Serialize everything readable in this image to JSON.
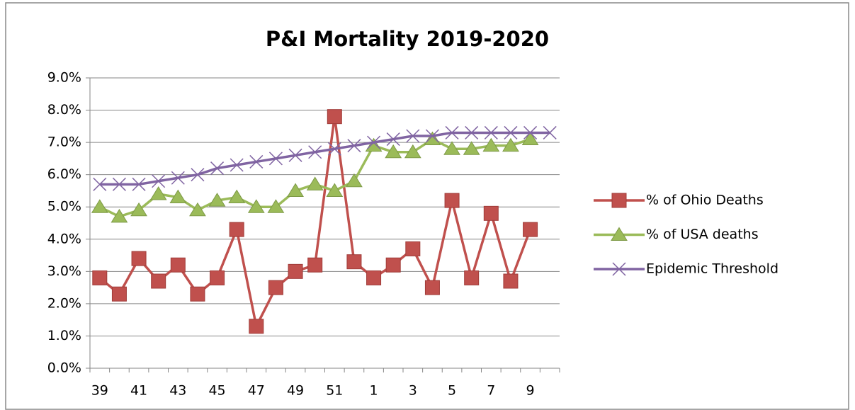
{
  "chart_data": {
    "type": "line",
    "title": "P&I Mortality  2019-2020",
    "categories": [
      "39",
      null,
      "41",
      null,
      "43",
      null,
      "45",
      null,
      "47",
      null,
      "49",
      null,
      "51",
      null,
      "1",
      null,
      "3",
      null,
      "5",
      null,
      "7",
      null,
      "9",
      null
    ],
    "series": [
      {
        "name": "% of Ohio Deaths",
        "color": "#c0504d",
        "marker": "square",
        "values": [
          2.8,
          2.3,
          3.4,
          2.7,
          3.2,
          2.3,
          2.8,
          4.3,
          1.3,
          2.5,
          3.0,
          3.2,
          7.8,
          3.3,
          2.8,
          3.2,
          3.7,
          2.5,
          5.2,
          2.8,
          4.8,
          2.7,
          4.3,
          null
        ]
      },
      {
        "name": "% of USA deaths",
        "color": "#9bbb59",
        "marker": "triangle",
        "values": [
          5.0,
          4.7,
          4.9,
          5.4,
          5.3,
          4.9,
          5.2,
          5.3,
          5.0,
          5.0,
          5.5,
          5.7,
          5.5,
          5.8,
          6.9,
          6.7,
          6.7,
          7.1,
          6.8,
          6.8,
          6.9,
          6.9,
          7.1,
          null
        ]
      },
      {
        "name": "Epidemic Threshold",
        "color": "#8064a2",
        "marker": "x",
        "values": [
          5.7,
          5.7,
          5.7,
          5.8,
          5.9,
          6.0,
          6.2,
          6.3,
          6.4,
          6.5,
          6.6,
          6.7,
          6.8,
          6.9,
          7.0,
          7.1,
          7.2,
          7.2,
          7.3,
          7.3,
          7.3,
          7.3,
          7.3,
          7.3
        ]
      }
    ],
    "ylim": [
      0,
      9
    ],
    "yticks": [
      {
        "value": 0,
        "label": "0.0%"
      },
      {
        "value": 1,
        "label": "1.0%"
      },
      {
        "value": 2,
        "label": "2.0%"
      },
      {
        "value": 3,
        "label": "3.0%"
      },
      {
        "value": 4,
        "label": "4.0%"
      },
      {
        "value": 5,
        "label": "5.0%"
      },
      {
        "value": 6,
        "label": "6.0%"
      },
      {
        "value": 7,
        "label": "7.0%"
      },
      {
        "value": 8,
        "label": "8.0%"
      },
      {
        "value": 9,
        "label": "9.0%"
      }
    ],
    "grid": true,
    "legend": "right"
  }
}
